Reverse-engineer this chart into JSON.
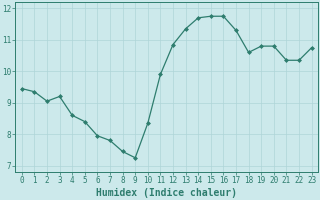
{
  "x": [
    0,
    1,
    2,
    3,
    4,
    5,
    6,
    7,
    8,
    9,
    10,
    11,
    12,
    13,
    14,
    15,
    16,
    17,
    18,
    19,
    20,
    21,
    22,
    23
  ],
  "y": [
    9.45,
    9.35,
    9.05,
    9.2,
    8.6,
    8.4,
    7.95,
    7.8,
    7.45,
    7.25,
    8.35,
    9.9,
    10.85,
    11.35,
    11.7,
    11.75,
    11.75,
    11.3,
    10.6,
    10.8,
    10.8,
    10.35,
    10.35,
    10.75
  ],
  "line_color": "#2e7d6e",
  "marker": "D",
  "marker_size": 2.0,
  "line_width": 0.9,
  "xlabel": "Humidex (Indice chaleur)",
  "ylabel": "",
  "title": "",
  "xlim": [
    -0.5,
    23.5
  ],
  "ylim": [
    6.8,
    12.2
  ],
  "yticks": [
    7,
    8,
    9,
    10,
    11,
    12
  ],
  "xticks": [
    0,
    1,
    2,
    3,
    4,
    5,
    6,
    7,
    8,
    9,
    10,
    11,
    12,
    13,
    14,
    15,
    16,
    17,
    18,
    19,
    20,
    21,
    22,
    23
  ],
  "bg_color": "#cce9eb",
  "grid_color": "#afd5d8",
  "tick_color": "#2e7d6e",
  "label_color": "#2e7d6e",
  "xlabel_fontsize": 7,
  "tick_fontsize": 5.5
}
